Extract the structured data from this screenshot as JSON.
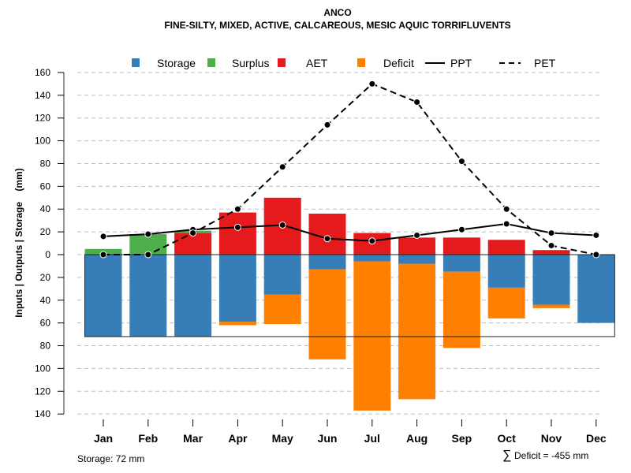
{
  "chart_data": {
    "type": "bar",
    "title": "ANCO",
    "subtitle": "FINE-SILTY, MIXED, ACTIVE, CALCAREOUS, MESIC AQUIC TORRIFLUVENTS",
    "ylabel": "Inputs | Outputs | Storage    (mm)",
    "xlabel": "",
    "ylim": [
      -140,
      160
    ],
    "yticks": [
      160,
      140,
      120,
      100,
      80,
      60,
      40,
      20,
      0,
      -20,
      -40,
      -60,
      -80,
      -100,
      -120,
      -140
    ],
    "ytick_labels": [
      "160",
      "140",
      "120",
      "100",
      "80",
      "60",
      "40",
      "20",
      "0",
      "20",
      "40",
      "60",
      "80",
      "100",
      "120",
      "140"
    ],
    "grid": true,
    "legend_position": "top",
    "categories": [
      "Jan",
      "Feb",
      "Mar",
      "Apr",
      "May",
      "Jun",
      "Jul",
      "Aug",
      "Sep",
      "Oct",
      "Nov",
      "Dec"
    ],
    "legend": [
      {
        "name": "Storage",
        "kind": "box",
        "color": "#377EB8"
      },
      {
        "name": "Surplus",
        "kind": "box",
        "color": "#4DAF4A"
      },
      {
        "name": "AET",
        "kind": "box",
        "color": "#E41A1C"
      },
      {
        "name": "Deficit",
        "kind": "box",
        "color": "#FF7F00"
      },
      {
        "name": "PPT",
        "kind": "solid-line",
        "color": "#000000"
      },
      {
        "name": "PET",
        "kind": "dashed-line",
        "color": "#000000"
      }
    ],
    "series": [
      {
        "name": "AET",
        "color": "#E41A1C",
        "direction": "up",
        "values": [
          0,
          0,
          19,
          37,
          50,
          36,
          19,
          15,
          15,
          13,
          4,
          0
        ]
      },
      {
        "name": "Surplus",
        "color": "#4DAF4A",
        "direction": "up",
        "values": [
          5,
          18,
          2,
          0,
          0,
          0,
          0,
          0,
          0,
          0,
          0,
          0
        ]
      },
      {
        "name": "Storage",
        "color": "#377EB8",
        "direction": "down",
        "values": [
          72,
          72,
          72,
          59,
          35,
          13,
          6,
          8,
          15,
          29,
          44,
          60
        ]
      },
      {
        "name": "Deficit",
        "color": "#FF7F00",
        "direction": "down",
        "values": [
          0,
          0,
          0,
          3,
          26,
          79,
          131,
          119,
          67,
          27,
          3,
          0
        ]
      },
      {
        "name": "PPT",
        "color": "#000000",
        "style": "solid",
        "values": [
          16,
          18,
          22,
          24,
          26,
          14,
          12,
          17,
          22,
          27,
          19,
          17
        ]
      },
      {
        "name": "PET",
        "color": "#000000",
        "style": "dashed",
        "values": [
          0,
          0,
          19,
          40,
          77,
          114,
          150,
          134,
          82,
          40,
          8,
          0
        ]
      }
    ],
    "storage_capacity": 72,
    "annotations": {
      "storage": "Storage: 72 mm",
      "deficit_sum_symbol": "∑",
      "deficit_sum": "Deficit = -455 mm"
    }
  }
}
